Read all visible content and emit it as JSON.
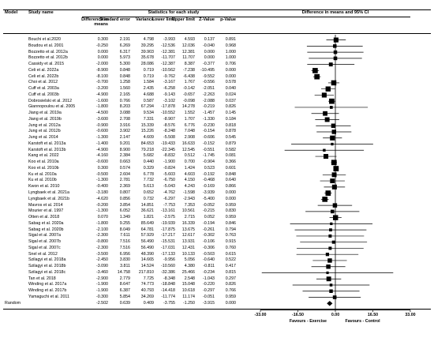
{
  "headers": {
    "model": "Model",
    "study": "Study name",
    "stats": "Statistics for each study",
    "plot": "Difference in means and 95% CI",
    "columns": [
      "Difference in means",
      "Standard error",
      "Variance",
      "Lower limit",
      "Upper limit",
      "Z-Value",
      "p-Value"
    ]
  },
  "chart_data": {
    "type": "forest",
    "title": "Difference in means and 95% CI",
    "columns": [
      "Difference in means",
      "Standard error",
      "Variance",
      "Lower limit",
      "Upper limit",
      "Z-Value",
      "p-Value"
    ],
    "xlim": [
      -33,
      33
    ],
    "x_ticks": [
      "-33.00",
      "-16.50",
      "0.00",
      "16.50",
      "33.00"
    ],
    "favours_left": "Favours - Exercise",
    "favours_right": "Favours - Control",
    "rows": [
      {
        "study": "Bouchi et al.2020",
        "values": [
          "0.300",
          "2.191",
          "4.798",
          "-3.993",
          "4.593",
          "0.137",
          "0.891"
        ]
      },
      {
        "study": "Boudou et al. 2001",
        "values": [
          "-0.250",
          "6.269",
          "39.295",
          "-12.536",
          "12.036",
          "-0.040",
          "0.968"
        ]
      },
      {
        "study": "Bozzetto et al. 2012a",
        "values": [
          "0.000",
          "6.317",
          "39.903",
          "-12.381",
          "12.381",
          "0.000",
          "1.000"
        ]
      },
      {
        "study": "Bozzetto et al. 2012b",
        "values": [
          "0.000",
          "5.973",
          "35.678",
          "-11.707",
          "11.707",
          "0.000",
          "1.000"
        ]
      },
      {
        "study": "Cassidy et al. 2015",
        "values": [
          "-2.000",
          "5.300",
          "28.086",
          "-12.387",
          "8.387",
          "-0.377",
          "0.706"
        ]
      },
      {
        "study": "Celi et al. 2022a",
        "values": [
          "-8.900",
          "0.848",
          "0.719",
          "-10.562",
          "-7.238",
          "-10.495",
          "0.000"
        ]
      },
      {
        "study": "Celi et al. 2022b",
        "values": [
          "-8.100",
          "0.848",
          "0.719",
          "-9.762",
          "-6.438",
          "-9.552",
          "0.000"
        ]
      },
      {
        "study": "Choi et al. 2012",
        "values": [
          "-0.700",
          "1.258",
          "1.584",
          "-3.167",
          "1.767",
          "-0.556",
          "0.578"
        ]
      },
      {
        "study": "Cuff et al. 2003a",
        "values": [
          "-3.200",
          "1.560",
          "2.435",
          "-6.258",
          "-0.142",
          "-2.051",
          "0.040"
        ]
      },
      {
        "study": "Cuff et al. 2003b",
        "values": [
          "-4.900",
          "2.165",
          "4.688",
          "-9.143",
          "-0.657",
          "-2.263",
          "0.024"
        ]
      },
      {
        "study": "Dobrosielski et al. 2012",
        "values": [
          "-1.600",
          "0.766",
          "0.587",
          "-3.102",
          "-0.098",
          "-2.088",
          "0.037"
        ]
      },
      {
        "study": "Giannopoulou et al. 2005",
        "values": [
          "-1.800",
          "8.203",
          "67.294",
          "-17.878",
          "14.278",
          "-0.219",
          "0.826"
        ]
      },
      {
        "study": "Jiang et al. 2019a",
        "values": [
          "-4.500",
          "3.088",
          "9.534",
          "-10.552",
          "1.552",
          "-1.457",
          "0.145"
        ]
      },
      {
        "study": "Jiang et al. 2019b",
        "values": [
          "-3.600",
          "2.708",
          "7.331",
          "-8.907",
          "1.707",
          "-1.330",
          "0.184"
        ]
      },
      {
        "study": "Jung et al. 2012a",
        "values": [
          "-0.900",
          "3.916",
          "15.339",
          "-8.576",
          "6.776",
          "-0.230",
          "0.818"
        ]
      },
      {
        "study": "Jung et al. 2012b",
        "values": [
          "-0.600",
          "3.902",
          "15.226",
          "-8.248",
          "7.048",
          "-0.154",
          "0.878"
        ]
      },
      {
        "study": "Jung et al. 2014",
        "values": [
          "-1.300",
          "2.147",
          "4.609",
          "-5.508",
          "2.908",
          "-0.606",
          "0.545"
        ]
      },
      {
        "study": "Karstoft et al. 2013a",
        "values": [
          "-1.400",
          "9.201",
          "84.653",
          "-19.433",
          "16.633",
          "-0.152",
          "0.879"
        ]
      },
      {
        "study": "Karstoft et al. 2013b",
        "values": [
          "-4.900",
          "8.900",
          "79.218",
          "-22.345",
          "12.545",
          "-0.551",
          "0.582"
        ]
      },
      {
        "study": "Kang et al. 2022",
        "values": [
          "-4.160",
          "2.384",
          "5.682",
          "-8.832",
          "0.512",
          "-1.745",
          "0.081"
        ]
      },
      {
        "study": "Koo et al. 2010a",
        "values": [
          "-0.600",
          "0.663",
          "0.440",
          "-1.900",
          "0.700",
          "-0.904",
          "0.366"
        ]
      },
      {
        "study": "Koo et al. 2010b",
        "values": [
          "0.300",
          "0.574",
          "0.329",
          "-0.824",
          "1.424",
          "0.523",
          "0.601"
        ]
      },
      {
        "study": "Ku et al. 2010a",
        "values": [
          "-0.500",
          "2.604",
          "6.778",
          "-5.603",
          "4.603",
          "-0.192",
          "0.848"
        ]
      },
      {
        "study": "Ku et al. 2010b",
        "values": [
          "-1.300",
          "2.781",
          "7.732",
          "-6.750",
          "4.150",
          "-0.468",
          "0.640"
        ]
      },
      {
        "study": "Kwon et al. 2010",
        "values": [
          "-0.400",
          "2.369",
          "5.613",
          "-5.043",
          "4.243",
          "-0.169",
          "0.866"
        ]
      },
      {
        "study": "Lyngbaek et al. 2021a",
        "values": [
          "-3.180",
          "0.807",
          "0.652",
          "-4.762",
          "-1.598",
          "-3.939",
          "0.000"
        ]
      },
      {
        "study": "Lyngbaek et al. 2021b",
        "values": [
          "-4.620",
          "0.856",
          "0.732",
          "-6.297",
          "-2.943",
          "-5.400",
          "0.000"
        ]
      },
      {
        "study": "Mavros et al. 2014",
        "values": [
          "-0.200",
          "3.854",
          "14.851",
          "-7.753",
          "7.353",
          "-0.052",
          "0.959"
        ]
      },
      {
        "study": "Mourier et al. 1997",
        "values": [
          "-1.300",
          "6.052",
          "36.621",
          "-13.161",
          "10.561",
          "-0.215",
          "0.830"
        ]
      },
      {
        "study": "Otten et al. 2018",
        "values": [
          "0.070",
          "1.349",
          "1.821",
          "-2.575",
          "2.715",
          "0.052",
          "0.959"
        ]
      },
      {
        "study": "Sabag et al. 2020a",
        "values": [
          "-1.800",
          "9.255",
          "85.649",
          "-19.939",
          "16.339",
          "-0.194",
          "0.846"
        ]
      },
      {
        "study": "Sabag et al. 2020b",
        "values": [
          "-2.100",
          "8.049",
          "64.781",
          "-17.875",
          "13.675",
          "-0.261",
          "0.794"
        ]
      },
      {
        "study": "Sigal et al. 2007a",
        "values": [
          "-2.300",
          "7.611",
          "57.929",
          "-17.217",
          "12.617",
          "-0.302",
          "0.763"
        ]
      },
      {
        "study": "Sigal et al. 2007b",
        "values": [
          "-0.800",
          "7.516",
          "56.490",
          "-15.531",
          "13.931",
          "-0.106",
          "0.915"
        ]
      },
      {
        "study": "Sigal et al. 2007c",
        "values": [
          "-2.300",
          "7.516",
          "56.490",
          "-17.031",
          "12.431",
          "-0.306",
          "0.760"
        ]
      },
      {
        "study": "Snel et al. 2012",
        "values": [
          "-3.500",
          "6.956",
          "48.390",
          "-17.133",
          "10.133",
          "-0.503",
          "0.615"
        ]
      },
      {
        "study": "Szilagyi et al. 2018a",
        "values": [
          "-2.450",
          "3.830",
          "14.665",
          "-9.956",
          "5.056",
          "-0.640",
          "0.522"
        ]
      },
      {
        "study": "Szilagyi et al. 2018b",
        "values": [
          "-3.090",
          "3.811",
          "14.524",
          "-10.560",
          "4.380",
          "-0.811",
          "0.417"
        ]
      },
      {
        "study": "Szilagyi et al. 2018c",
        "values": [
          "-3.460",
          "14.758",
          "217.810",
          "-32.386",
          "25.466",
          "-0.234",
          "0.815"
        ]
      },
      {
        "study": "Tan et al. 2018",
        "values": [
          "-2.900",
          "2.779",
          "7.725",
          "-8.348",
          "2.548",
          "-1.043",
          "0.297"
        ]
      },
      {
        "study": "Winding et al. 2017a",
        "values": [
          "-1.900",
          "8.647",
          "74.773",
          "-18.848",
          "15.048",
          "-0.220",
          "0.826"
        ]
      },
      {
        "study": "Winding et al. 2017b",
        "values": [
          "-1.900",
          "6.387",
          "40.793",
          "-14.418",
          "10.618",
          "-0.297",
          "0.766"
        ]
      },
      {
        "study": "Yamaguchi et al. 2011",
        "values": [
          "-0.300",
          "5.854",
          "34.269",
          "-11.774",
          "11.174",
          "-0.051",
          "0.959"
        ]
      }
    ],
    "summary": {
      "model": "Random",
      "values": [
        "-2.502",
        "0.639",
        "0.409",
        "-3.755",
        "-1.250",
        "-3.915",
        "0.000"
      ]
    }
  }
}
